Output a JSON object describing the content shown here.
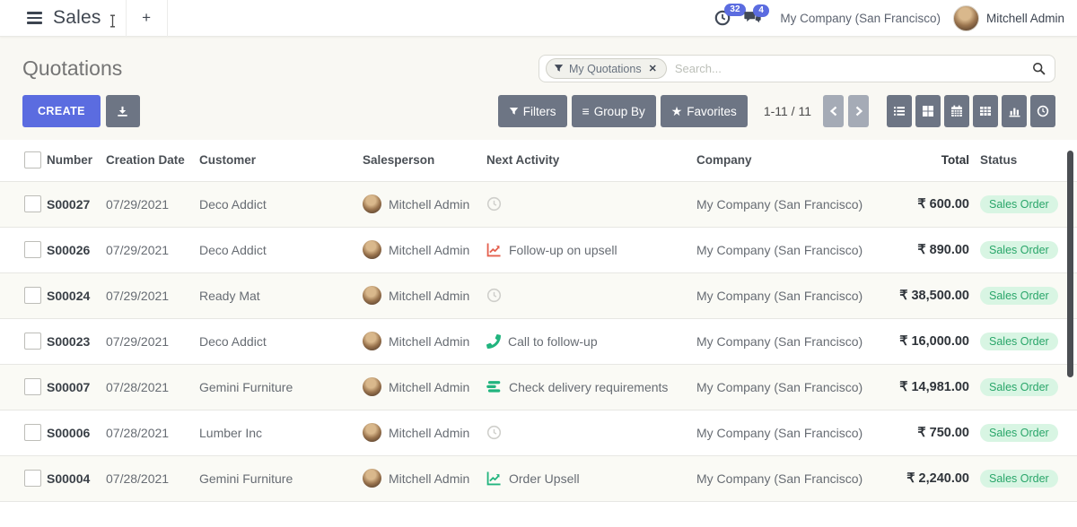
{
  "navbar": {
    "app_name": "Sales",
    "new_tab_label": "+",
    "activity_count": "32",
    "message_count": "4",
    "company": "My Company (San Francisco)",
    "user": "Mitchell Admin"
  },
  "control_panel": {
    "title": "Quotations",
    "create_label": "CREATE",
    "search": {
      "facet_label": "My Quotations",
      "facet_close_glyph": "✕",
      "placeholder": "Search..."
    },
    "filters_label": "Filters",
    "group_by_label": "Group By",
    "group_by_glyph": "≡",
    "favorites_label": "Favorites",
    "favorites_glyph": "★",
    "pager_text": "1-11 / 11"
  },
  "icons": {
    "navbar": [
      "menu-icon",
      "activity-clock-icon",
      "messages-icon"
    ],
    "search": [
      "filter-funnel-icon",
      "close-icon",
      "search-icon"
    ],
    "buttons": [
      "download-icon",
      "filter-funnel-icon",
      "group-by-icon",
      "star-icon",
      "chevron-left-icon",
      "chevron-right-icon"
    ],
    "view_switcher": [
      "list-view-icon",
      "kanban-view-icon",
      "calendar-view-icon",
      "pivot-view-icon",
      "graph-view-icon",
      "activity-view-icon"
    ]
  },
  "colors": {
    "primary": "#5b6ce0",
    "slate_button": "#6d7584",
    "pager_button": "#a5abb6",
    "badge_bg": "#d8f5e3",
    "badge_text": "#2aa66a",
    "activity_red": "#e4604e",
    "activity_green": "#21b47e",
    "clock_gray": "#cfcfcb",
    "scrollbar": "#4b4e53"
  },
  "table": {
    "columns": [
      "Number",
      "Creation Date",
      "Customer",
      "Salesperson",
      "Next Activity",
      "Company",
      "Total",
      "Status"
    ],
    "rows": [
      {
        "number": "S00027",
        "creation_date": "07/29/2021",
        "customer": "Deco Addict",
        "salesperson": "Mitchell Admin",
        "activity": {
          "icon": "clock-icon",
          "color": "#cfcfcb",
          "label": ""
        },
        "company": "My Company (San Francisco)",
        "total": "₹ 600.00",
        "status": "Sales Order"
      },
      {
        "number": "S00026",
        "creation_date": "07/29/2021",
        "customer": "Deco Addict",
        "salesperson": "Mitchell Admin",
        "activity": {
          "icon": "trend-up-icon",
          "color": "#e4604e",
          "label": "Follow-up on upsell"
        },
        "company": "My Company (San Francisco)",
        "total": "₹ 890.00",
        "status": "Sales Order"
      },
      {
        "number": "S00024",
        "creation_date": "07/29/2021",
        "customer": "Ready Mat",
        "salesperson": "Mitchell Admin",
        "activity": {
          "icon": "clock-icon",
          "color": "#cfcfcb",
          "label": ""
        },
        "company": "My Company (San Francisco)",
        "total": "₹ 38,500.00",
        "status": "Sales Order"
      },
      {
        "number": "S00023",
        "creation_date": "07/29/2021",
        "customer": "Deco Addict",
        "salesperson": "Mitchell Admin",
        "activity": {
          "icon": "phone-icon",
          "color": "#21b47e",
          "label": "Call to follow-up"
        },
        "company": "My Company (San Francisco)",
        "total": "₹ 16,000.00",
        "status": "Sales Order"
      },
      {
        "number": "S00007",
        "creation_date": "07/28/2021",
        "customer": "Gemini Furniture",
        "salesperson": "Mitchell Admin",
        "activity": {
          "icon": "delivery-lines-icon",
          "color": "#21b47e",
          "label": "Check delivery requirements"
        },
        "company": "My Company (San Francisco)",
        "total": "₹ 14,981.00",
        "status": "Sales Order"
      },
      {
        "number": "S00006",
        "creation_date": "07/28/2021",
        "customer": "Lumber Inc",
        "salesperson": "Mitchell Admin",
        "activity": {
          "icon": "clock-icon",
          "color": "#cfcfcb",
          "label": ""
        },
        "company": "My Company (San Francisco)",
        "total": "₹ 750.00",
        "status": "Sales Order"
      },
      {
        "number": "S00004",
        "creation_date": "07/28/2021",
        "customer": "Gemini Furniture",
        "salesperson": "Mitchell Admin",
        "activity": {
          "icon": "trend-up-icon",
          "color": "#21b47e",
          "label": "Order Upsell"
        },
        "company": "My Company (San Francisco)",
        "total": "₹ 2,240.00",
        "status": "Sales Order"
      }
    ]
  }
}
